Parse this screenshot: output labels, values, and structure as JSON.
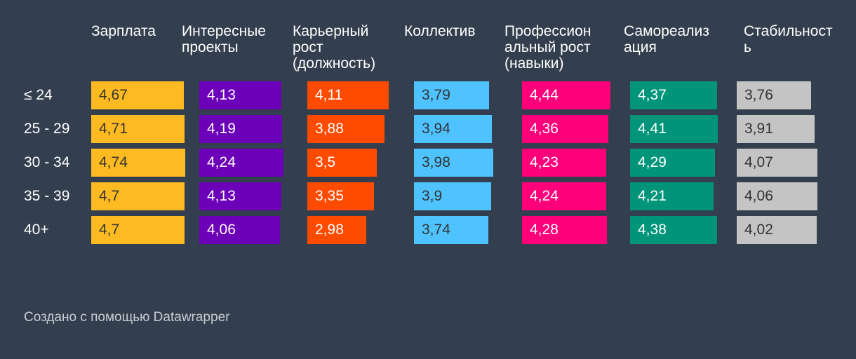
{
  "chart_data": {
    "type": "table",
    "columns": [
      {
        "label": "Зарплата",
        "color": "#fdba21",
        "text_color": "#333333"
      },
      {
        "label": "Интересные\nпроекты",
        "color": "#6b00b8",
        "text_color": "#ffffff"
      },
      {
        "label": "Карьерный\nрост\n(должность)",
        "color": "#ff4b00",
        "text_color": "#ffffff"
      },
      {
        "label": "Коллектив",
        "color": "#4ec3ff",
        "text_color": "#333333"
      },
      {
        "label": "Профессион\nальный рост\n(навыки)",
        "color": "#ff007a",
        "text_color": "#ffffff"
      },
      {
        "label": "Самореализ\nация",
        "color": "#00957a",
        "text_color": "#ffffff"
      },
      {
        "label": "Стабильност\nь",
        "color": "#c4c4c4",
        "text_color": "#333333"
      }
    ],
    "rows": [
      {
        "label": "≤ 24",
        "values": [
          "4,67",
          "4,13",
          "4,11",
          "3,79",
          "4,44",
          "4,37",
          "3,76"
        ]
      },
      {
        "label": "25 - 29",
        "values": [
          "4,71",
          "4,19",
          "3,88",
          "3,94",
          "4,36",
          "4,41",
          "3,91"
        ]
      },
      {
        "label": "30 - 34",
        "values": [
          "4,74",
          "4,24",
          "3,5",
          "3,98",
          "4,23",
          "4,29",
          "4,07"
        ]
      },
      {
        "label": "35 - 39",
        "values": [
          "4,7",
          "4,13",
          "3,35",
          "3,9",
          "4,24",
          "4,21",
          "4,06"
        ]
      },
      {
        "label": "40+",
        "values": [
          "4,7",
          "4,06",
          "2,98",
          "3,74",
          "4,28",
          "4,38",
          "4,02"
        ]
      }
    ]
  },
  "footer": {
    "credit": "Создано с помощью Datawrapper"
  }
}
